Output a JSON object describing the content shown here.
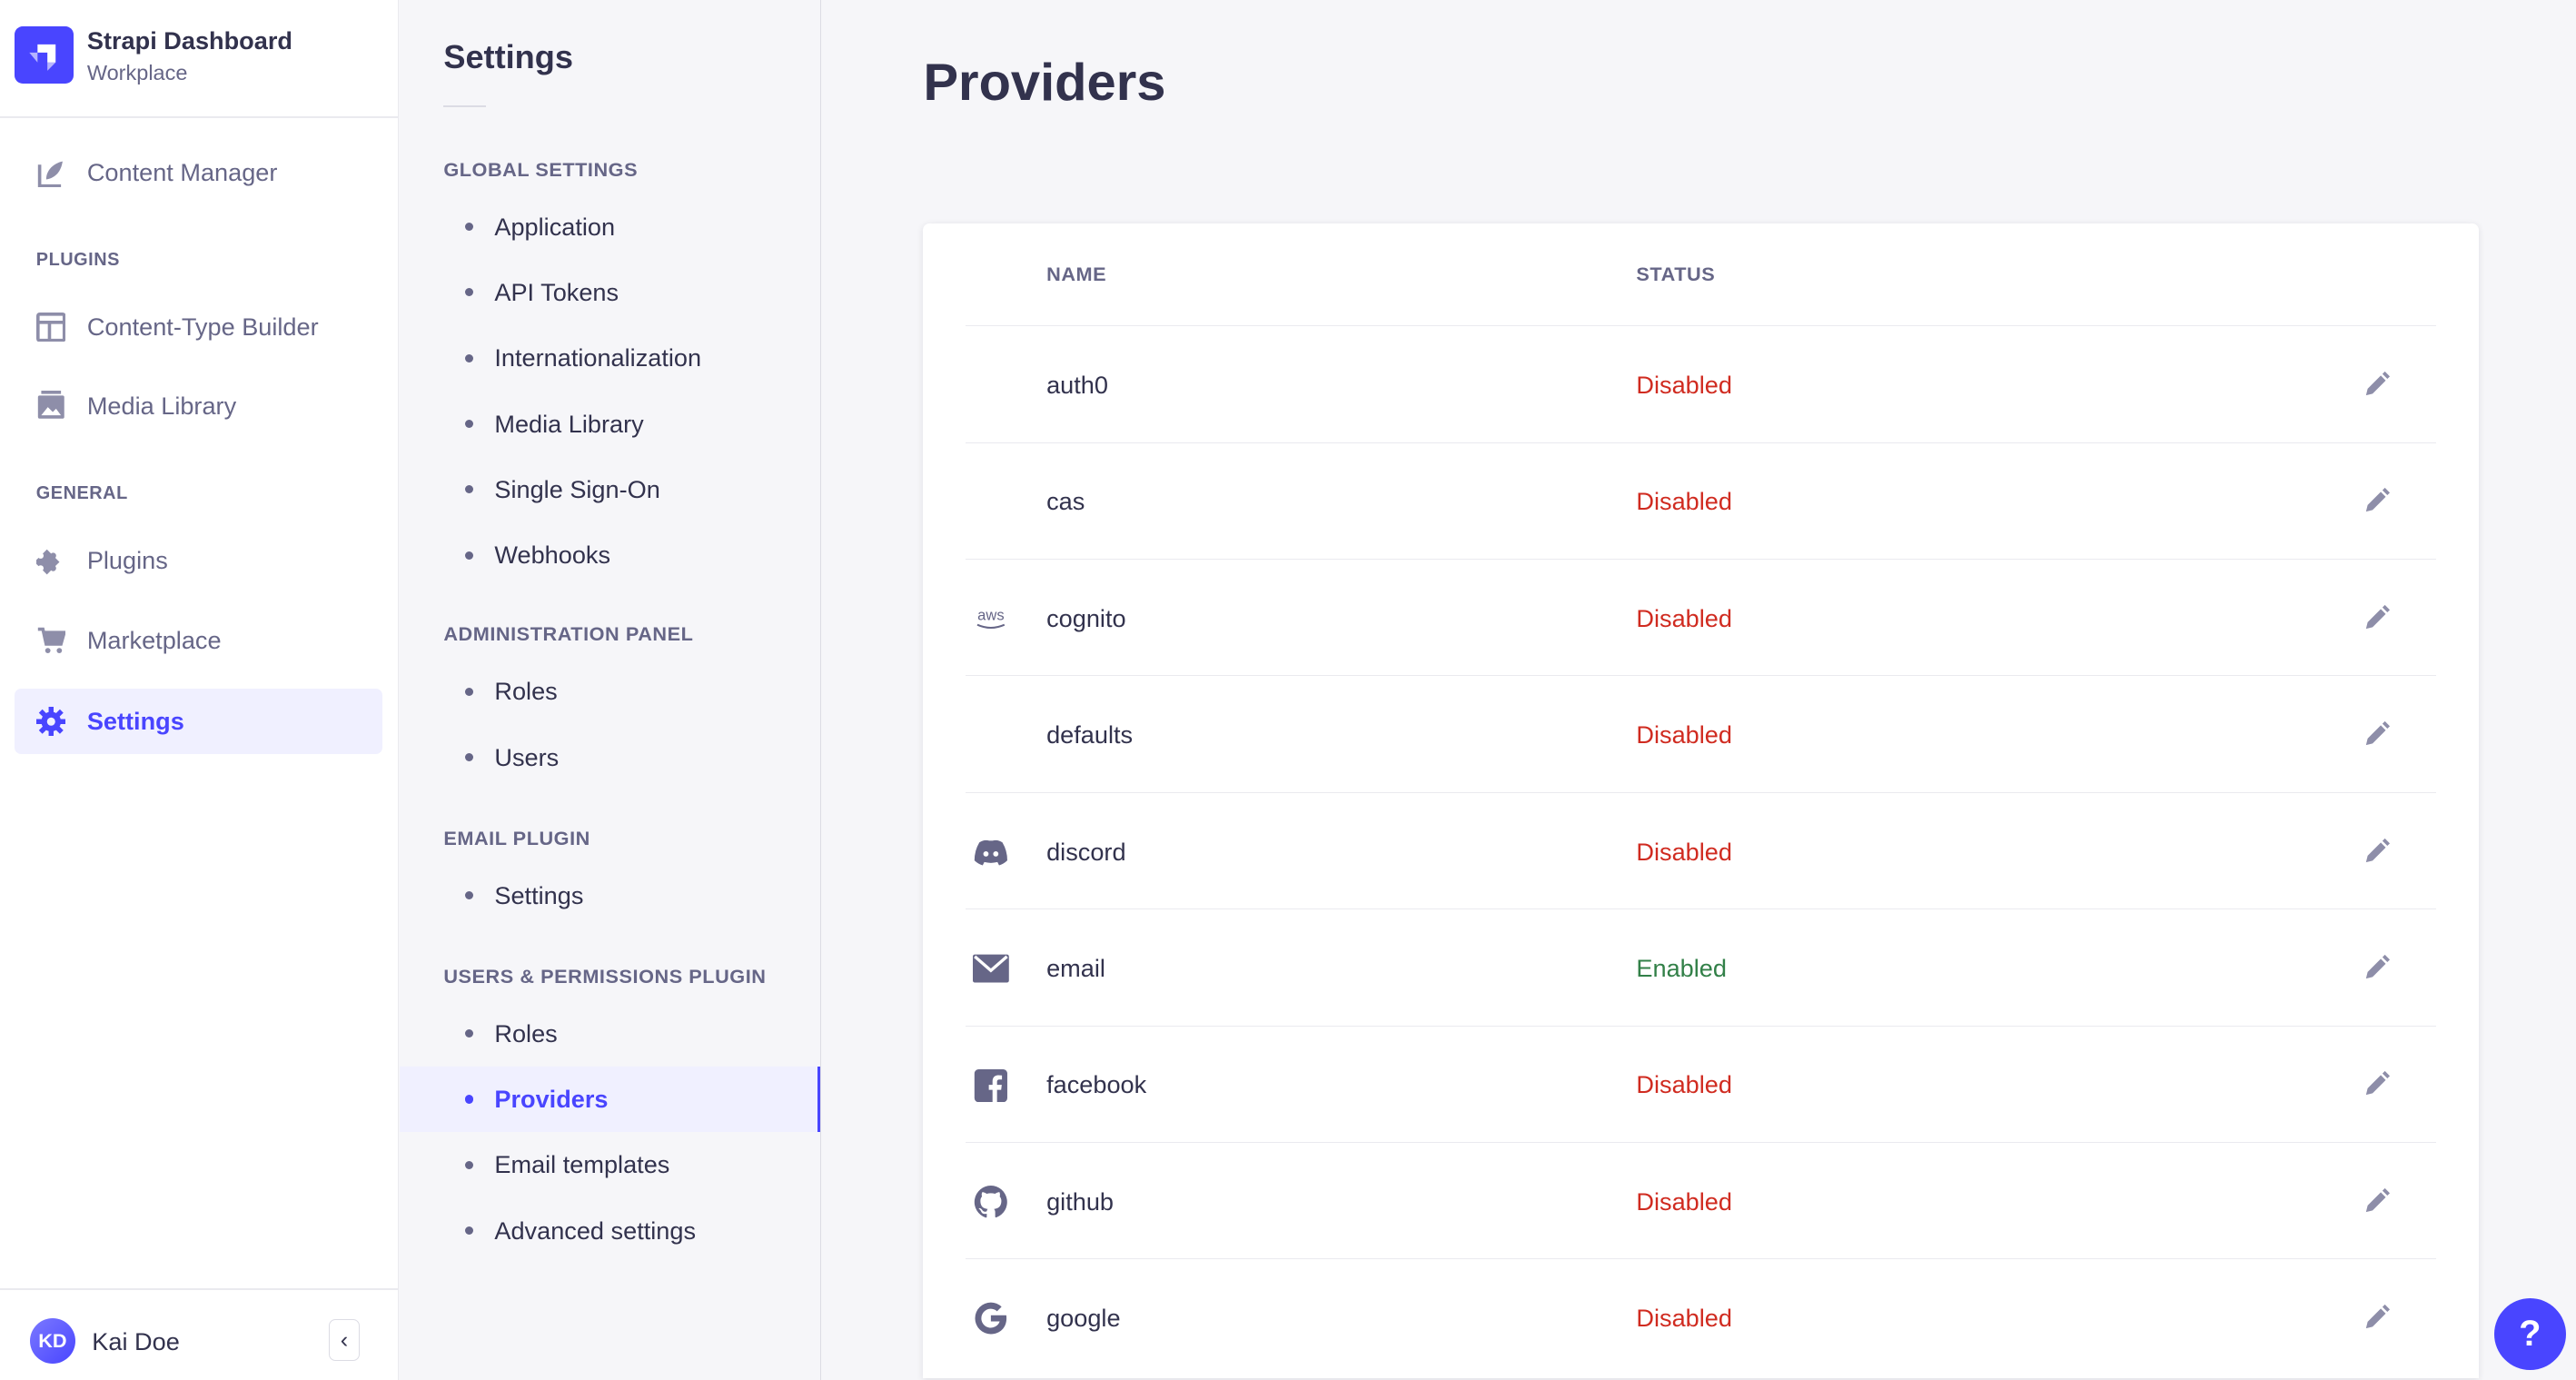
{
  "app": {
    "title": "Strapi Dashboard",
    "subtitle": "Workplace",
    "accent": "#4945ff"
  },
  "nav": {
    "content_manager": "Content Manager",
    "plugins_label": "PLUGINS",
    "content_type_builder": "Content-Type Builder",
    "media_library": "Media Library",
    "general_label": "GENERAL",
    "plugins": "Plugins",
    "marketplace": "Marketplace",
    "settings": "Settings"
  },
  "user": {
    "initials": "KD",
    "name": "Kai Doe"
  },
  "settings_nav": {
    "title": "Settings",
    "sections": [
      {
        "label": "GLOBAL SETTINGS",
        "items": [
          "Application",
          "API Tokens",
          "Internationalization",
          "Media Library",
          "Single Sign-On",
          "Webhooks"
        ]
      },
      {
        "label": "ADMINISTRATION PANEL",
        "items": [
          "Roles",
          "Users"
        ]
      },
      {
        "label": "EMAIL PLUGIN",
        "items": [
          "Settings"
        ]
      },
      {
        "label": "USERS & PERMISSIONS PLUGIN",
        "items": [
          "Roles",
          "Providers",
          "Email templates",
          "Advanced settings"
        ]
      }
    ],
    "active": "Providers"
  },
  "page": {
    "title": "Providers"
  },
  "table": {
    "headers": {
      "name": "NAME",
      "status": "STATUS"
    },
    "status_colors": {
      "Enabled": "#328048",
      "Disabled": "#d02b20"
    },
    "rows": [
      {
        "icon": "none",
        "name": "auth0",
        "status": "Disabled"
      },
      {
        "icon": "aws-icon",
        "name": "cas",
        "status": "Disabled"
      },
      {
        "icon": "aws-icon",
        "name": "cognito",
        "status": "Disabled"
      },
      {
        "icon": "none",
        "name": "defaults",
        "status": "Disabled"
      },
      {
        "icon": "discord-icon",
        "name": "discord",
        "status": "Disabled"
      },
      {
        "icon": "envelope-icon",
        "name": "email",
        "status": "Enabled"
      },
      {
        "icon": "facebook-icon",
        "name": "facebook",
        "status": "Disabled"
      },
      {
        "icon": "github-icon",
        "name": "github",
        "status": "Disabled"
      },
      {
        "icon": "google-icon",
        "name": "google",
        "status": "Disabled"
      }
    ]
  },
  "help": {
    "label": "?"
  }
}
